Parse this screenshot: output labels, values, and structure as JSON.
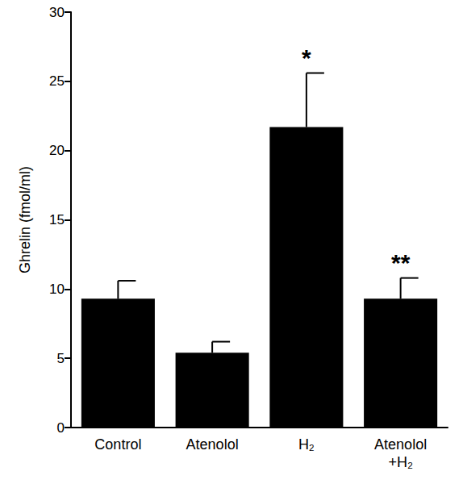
{
  "chart_data": {
    "type": "bar",
    "y_label": "Ghrelin (fmol/ml)",
    "categories": [
      "Control",
      "Atenolol",
      "H₂",
      "Atenolol\n+H₂"
    ],
    "values": [
      9.3,
      5.4,
      21.7,
      9.3
    ],
    "errors": [
      1.3,
      0.8,
      3.9,
      1.5
    ],
    "color": "#000000",
    "ylim": [
      0,
      30
    ],
    "yticks": [
      0,
      5,
      10,
      15,
      20,
      25,
      30
    ],
    "grid": false,
    "annotations": [
      {
        "category": "H₂",
        "text": "*"
      },
      {
        "category": "Atenolol\n+H₂",
        "text": "**"
      }
    ]
  }
}
